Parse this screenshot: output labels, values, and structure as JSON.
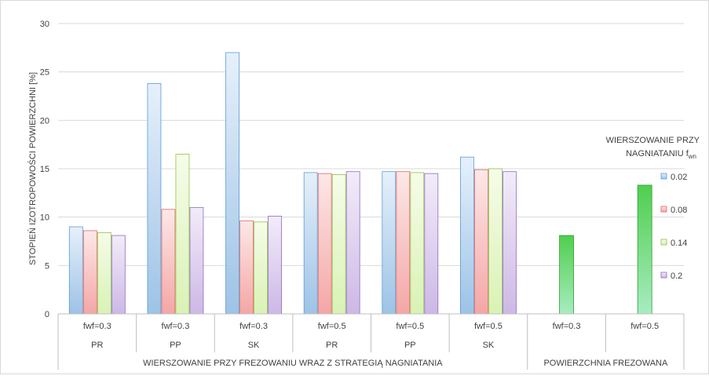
{
  "chart_data": {
    "type": "bar",
    "ylabel": "STOPIEŃ IZOTROPOWOŚCI POWIERZCHNI [%]",
    "ylim": [
      0,
      30
    ],
    "yticks": [
      0,
      5,
      10,
      15,
      20,
      25,
      30
    ],
    "grid": true,
    "legend": {
      "title_line1": "WIERSZOWANIE PRZY",
      "title_line2": "NAGNIATANIU f",
      "title_sub": "wn",
      "position": "right",
      "entries": [
        "0.02",
        "0.08",
        "0.14",
        "0.2"
      ]
    },
    "groups": [
      {
        "label1": "fwf=0.3",
        "label2": "PR",
        "values": [
          9.0,
          8.6,
          8.4,
          8.1
        ]
      },
      {
        "label1": "fwf=0.3",
        "label2": "PP",
        "values": [
          23.8,
          10.8,
          16.5,
          11.0
        ]
      },
      {
        "label1": "fwf=0.3",
        "label2": "SK",
        "values": [
          27.0,
          9.6,
          9.5,
          10.1
        ]
      },
      {
        "label1": "fwf=0.5",
        "label2": "PR",
        "values": [
          14.6,
          14.5,
          14.4,
          14.7
        ]
      },
      {
        "label1": "fwf=0.5",
        "label2": "PP",
        "values": [
          14.7,
          14.7,
          14.6,
          14.5
        ]
      },
      {
        "label1": "fwf=0.5",
        "label2": "SK",
        "values": [
          16.2,
          14.9,
          15.0,
          14.7
        ]
      },
      {
        "label1": "fwf=0.3",
        "label2": "",
        "single": 8.1
      },
      {
        "label1": "fwf=0.5",
        "label2": "",
        "single": 13.3
      }
    ],
    "supercategories": [
      {
        "label": "WIERSZOWANIE PRZY FREZOWANIU WRAZ Z STRATEGIĄ NAGNIATANIA",
        "span": [
          0,
          5
        ]
      },
      {
        "label": "POWIERZCHNIA FREZOWANA",
        "span": [
          6,
          7
        ]
      }
    ],
    "colors": {
      "s0": {
        "fill": "#9dc3e6",
        "light": "#e6f0fb",
        "stroke": "#5b9bd5"
      },
      "s1": {
        "fill": "#f4a6a6",
        "light": "#fde8e8",
        "stroke": "#e06666"
      },
      "s2": {
        "fill": "#d9f2b5",
        "light": "#f6fce9",
        "stroke": "#8fc44a"
      },
      "s3": {
        "fill": "#cdb8e6",
        "light": "#f2ecf9",
        "stroke": "#8e6bbf"
      },
      "single": {
        "fill": "#4fcf4f",
        "light": "#a8ecc0",
        "stroke": "#2f9e2f"
      }
    }
  }
}
